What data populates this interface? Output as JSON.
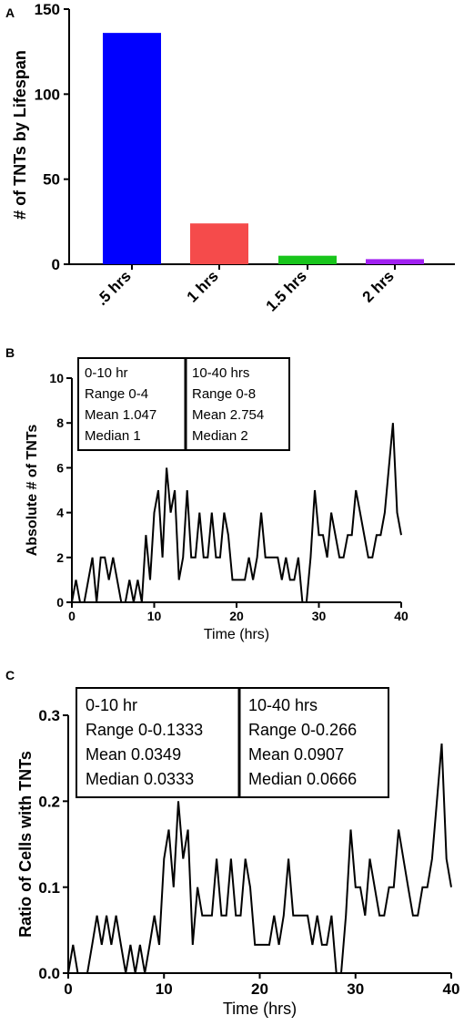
{
  "chart_data": [
    {
      "panel": "A",
      "type": "bar",
      "ylabel": "# of TNTs by Lifespan",
      "xlabel": "",
      "categories": [
        ".5 hrs",
        "1 hrs",
        "1.5 hrs",
        "2 hrs"
      ],
      "values": [
        136,
        24,
        5,
        3
      ],
      "colors": [
        "#0000FF",
        "#F54B4B",
        "#18C51B",
        "#A020F0"
      ],
      "ylim": [
        0,
        150
      ],
      "yticks": [
        0,
        50,
        100,
        150
      ],
      "grid": false,
      "legend": "none"
    },
    {
      "panel": "B",
      "type": "line",
      "xlabel": "Time (hrs)",
      "ylabel": "Absolute # of TNTs",
      "xlim": [
        0,
        40
      ],
      "ylim": [
        0,
        10
      ],
      "xticks": [
        0,
        10,
        20,
        30,
        40
      ],
      "yticks": [
        0,
        2,
        4,
        6,
        8,
        10
      ],
      "grid": false,
      "legend": "none",
      "stats_boxes": [
        {
          "header": "0-10 hr",
          "range": "Range 0-4",
          "mean": "Mean 1.047",
          "median": "Median 1"
        },
        {
          "header": "10-40 hrs",
          "range": "Range 0-8",
          "mean": "Mean 2.754",
          "median": "Median 2"
        }
      ],
      "x": [
        0,
        0.5,
        1,
        1.5,
        2,
        2.5,
        3,
        3.5,
        4,
        4.5,
        5,
        5.5,
        6,
        6.5,
        7,
        7.5,
        8,
        8.5,
        9,
        9.5,
        10,
        10.5,
        11,
        11.5,
        12,
        12.5,
        13,
        13.5,
        14,
        14.5,
        15,
        15.5,
        16,
        16.5,
        17,
        17.5,
        18,
        18.5,
        19,
        19.5,
        20,
        20.5,
        21,
        21.5,
        22,
        22.5,
        23,
        23.5,
        24,
        24.5,
        25,
        25.5,
        26,
        26.5,
        27,
        27.5,
        28,
        28.5,
        29,
        29.5,
        30,
        30.5,
        31,
        31.5,
        32,
        32.5,
        33,
        33.5,
        34,
        34.5,
        35,
        35.5,
        36,
        36.5,
        37,
        37.5,
        38,
        38.5,
        39,
        39.5,
        40
      ],
      "y": [
        0,
        1,
        0,
        0,
        1,
        2,
        0,
        2,
        2,
        1,
        2,
        1,
        0,
        0,
        1,
        0,
        1,
        0,
        3,
        1,
        4,
        5,
        2,
        6,
        4,
        5,
        1,
        2,
        5,
        2,
        2,
        4,
        2,
        2,
        4,
        2,
        2,
        4,
        3,
        1,
        1,
        1,
        1,
        2,
        1,
        2,
        4,
        2,
        2,
        2,
        2,
        1,
        2,
        1,
        1,
        2,
        0,
        0,
        2,
        5,
        3,
        3,
        2,
        4,
        3,
        2,
        2,
        3,
        3,
        5,
        4,
        3,
        2,
        2,
        3,
        3,
        4,
        6,
        8,
        4,
        3
      ]
    },
    {
      "panel": "C",
      "type": "line",
      "xlabel": "Time (hrs)",
      "ylabel": "Ratio of Cells with TNTs",
      "xlim": [
        0,
        40
      ],
      "ylim": [
        0,
        0.3
      ],
      "xticks": [
        0,
        10,
        20,
        30,
        40
      ],
      "yticks": [
        "0.0",
        "0.1",
        "0.2",
        "0.3"
      ],
      "grid": false,
      "legend": "none",
      "stats_boxes": [
        {
          "header": "0-10 hr",
          "range": "Range 0-0.1333",
          "mean": "Mean 0.0349",
          "median": "Median 0.0333"
        },
        {
          "header": "10-40 hrs",
          "range": "Range 0-0.266",
          "mean": "Mean 0.0907",
          "median": "Median 0.0666"
        }
      ],
      "x": [
        0,
        0.5,
        1,
        1.5,
        2,
        2.5,
        3,
        3.5,
        4,
        4.5,
        5,
        5.5,
        6,
        6.5,
        7,
        7.5,
        8,
        8.5,
        9,
        9.5,
        10,
        10.5,
        11,
        11.5,
        12,
        12.5,
        13,
        13.5,
        14,
        14.5,
        15,
        15.5,
        16,
        16.5,
        17,
        17.5,
        18,
        18.5,
        19,
        19.5,
        20,
        20.5,
        21,
        21.5,
        22,
        22.5,
        23,
        23.5,
        24,
        24.5,
        25,
        25.5,
        26,
        26.5,
        27,
        27.5,
        28,
        28.5,
        29,
        29.5,
        30,
        30.5,
        31,
        31.5,
        32,
        32.5,
        33,
        33.5,
        34,
        34.5,
        35,
        35.5,
        36,
        36.5,
        37,
        37.5,
        38,
        38.5,
        39,
        39.5,
        40
      ],
      "y": [
        0,
        0.033,
        0,
        0,
        0,
        0.033,
        0.067,
        0.033,
        0.067,
        0.033,
        0.067,
        0.033,
        0,
        0.033,
        0,
        0.033,
        0,
        0.033,
        0.067,
        0.033,
        0.133,
        0.167,
        0.1,
        0.2,
        0.133,
        0.167,
        0.033,
        0.1,
        0.067,
        0.067,
        0.067,
        0.133,
        0.067,
        0.067,
        0.133,
        0.067,
        0.067,
        0.133,
        0.1,
        0.033,
        0.033,
        0.033,
        0.033,
        0.067,
        0.033,
        0.067,
        0.133,
        0.067,
        0.067,
        0.067,
        0.067,
        0.033,
        0.067,
        0.033,
        0.033,
        0.067,
        0,
        0,
        0.067,
        0.167,
        0.1,
        0.1,
        0.067,
        0.133,
        0.1,
        0.067,
        0.067,
        0.1,
        0.1,
        0.167,
        0.133,
        0.1,
        0.067,
        0.067,
        0.1,
        0.1,
        0.133,
        0.2,
        0.267,
        0.133,
        0.1
      ]
    }
  ],
  "panels": {
    "A": {
      "letter": "A"
    },
    "B": {
      "letter": "B"
    },
    "C": {
      "letter": "C"
    }
  }
}
